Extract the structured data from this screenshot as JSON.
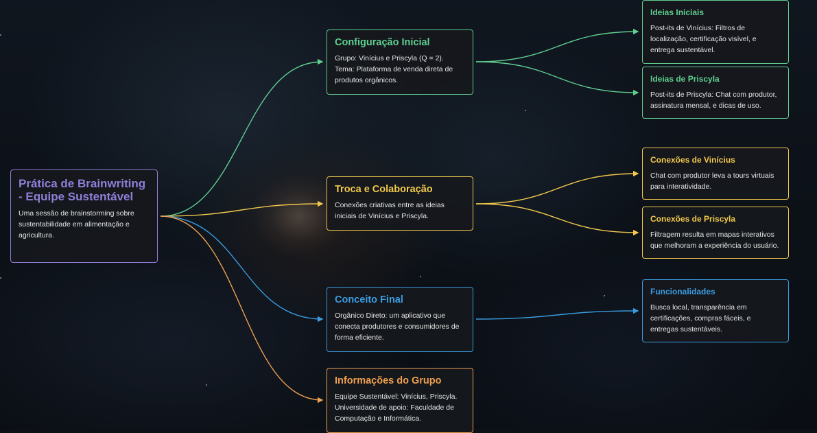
{
  "root": {
    "title": "Prática de Brainwriting - Equipe Sustentável",
    "desc": "Uma sessão de brainstorming sobre sustentabilidade em alimentação e agricultura.",
    "color": "#8f7fd8"
  },
  "config": {
    "title": "Configuração Inicial",
    "desc": "Grupo: Vinícius e Priscyla (Q = 2). Tema: Plataforma de venda direta de produtos orgânicos.",
    "color": "#5fcf90"
  },
  "troca": {
    "title": "Troca e Colaboração",
    "desc": "Conexões criativas entre as ideias iniciais de Vinícius e Priscyla.",
    "color": "#f2c94c"
  },
  "conceito": {
    "title": "Conceito Final",
    "desc": "Orgânico Direto: um aplicativo que conecta produtores e consumidores de forma eficiente.",
    "color": "#3a9ce0"
  },
  "info": {
    "title": "Informações do Grupo",
    "desc": "Equipe Sustentável: Vinícius, Priscyla. Universidade de apoio: Faculdade de Computação e Informática.",
    "color": "#f0a050"
  },
  "ideias_iniciais": {
    "title": "Ideias Iniciais",
    "desc": "Post-its de Vinícius: Filtros de localização, certificação visível, e entrega sustentável.",
    "color": "#5fcf90"
  },
  "ideias_priscyla": {
    "title": "Ideias de Priscyla",
    "desc": "Post-its de Priscyla: Chat com produtor, assinatura mensal, e dicas de uso.",
    "color": "#5fcf90"
  },
  "conexoes_vinicius": {
    "title": "Conexões de Vinícius",
    "desc": "Chat com produtor leva a tours virtuais para interatividade.",
    "color": "#f2c94c"
  },
  "conexoes_priscyla": {
    "title": "Conexões de Priscyla",
    "desc": "Filtragem resulta em mapas interativos que melhoram a experiência do usuário.",
    "color": "#f2c94c"
  },
  "funcionalidades": {
    "title": "Funcionalidades",
    "desc": "Busca local, transparência em certificações, compras fáceis, e entregas sustentáveis.",
    "color": "#3a9ce0"
  }
}
